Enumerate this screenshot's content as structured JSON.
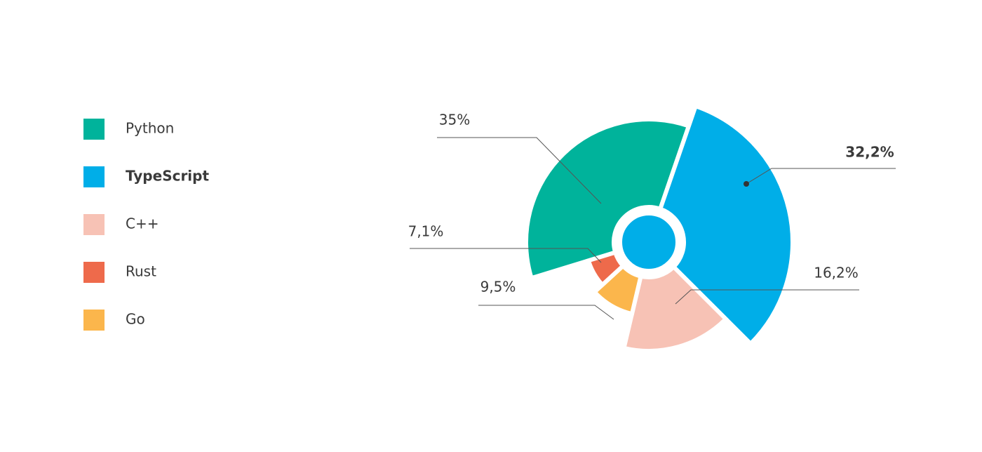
{
  "chart_data": {
    "type": "pie",
    "categories": [
      "Python",
      "TypeScript",
      "C++",
      "Rust",
      "Go"
    ],
    "values": [
      35,
      32.2,
      16.2,
      7.1,
      9.5
    ],
    "value_labels": [
      "35%",
      "32,2%",
      "16,2%",
      "7,1%",
      "9,5%"
    ],
    "colors": [
      "#00b39b",
      "#00aee8",
      "#f7c2b5",
      "#ee6a4b",
      "#fbb64c"
    ],
    "highlight_index": 1,
    "legend": "left"
  }
}
